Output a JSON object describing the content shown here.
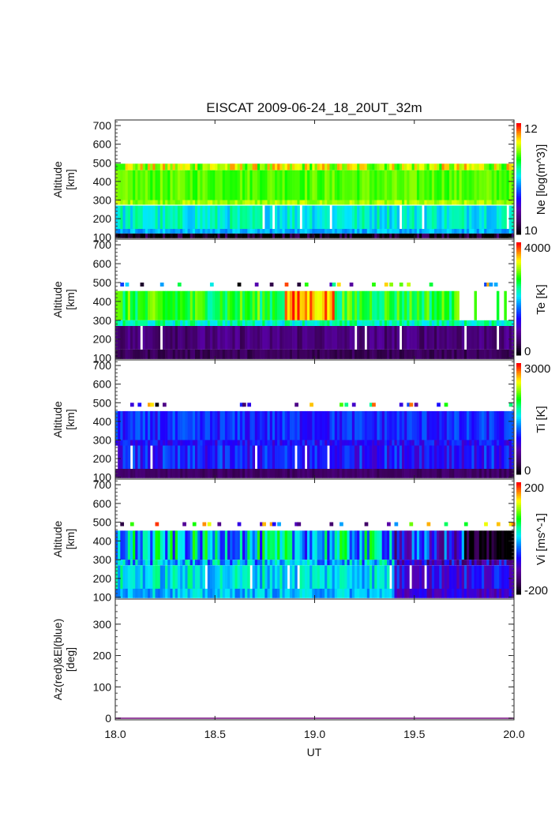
{
  "chart_data": {
    "type": "heatmap",
    "title": "EISCAT 2009-06-24_18_20UT_32m",
    "xlabel": "UT",
    "xlim": [
      18.0,
      20.0
    ],
    "xticks": [
      "18.0",
      "18.5",
      "19.0",
      "19.5",
      "20.0"
    ],
    "xtick_values": [
      18.0,
      18.5,
      19.0,
      19.5,
      20.0
    ],
    "panels": [
      {
        "id": "ne",
        "ylabel": [
          "Altitude",
          "[km]"
        ],
        "ylim": [
          90,
          730
        ],
        "yticks": [
          100,
          200,
          300,
          400,
          500,
          600,
          700
        ],
        "colorbar": {
          "label": "Ne [log(m^3)]",
          "min": 10,
          "max": 12,
          "min_label": "10",
          "max_label": "12"
        },
        "description": "Electron density; dominant values ~11.3-11.6 (green/yellow-green) between 280-490 km, ~11.0 (cyan) 140-270 km, low values below 130 km; gaps shown white",
        "layers": [
          {
            "alt": [
              460,
              495
            ],
            "typical": 11.6,
            "spread": 0.25
          },
          {
            "alt": [
              300,
              460
            ],
            "typical": 11.45,
            "spread": 0.08
          },
          {
            "alt": [
              275,
              300
            ],
            "typical": 11.55,
            "spread": 0.1
          },
          {
            "alt": [
              145,
              270
            ],
            "typical": 11.1,
            "spread": 0.15
          },
          {
            "alt": [
              120,
              145
            ],
            "typical": 10.95,
            "spread": 0.1
          },
          {
            "alt": [
              95,
              120
            ],
            "typical": 10.0,
            "spread": 0.3
          }
        ]
      },
      {
        "id": "te",
        "ylabel": [
          "Altitude",
          "[km]"
        ],
        "ylim": [
          90,
          730
        ],
        "yticks": [
          100,
          200,
          300,
          400,
          500,
          600,
          700
        ],
        "colorbar": {
          "label": "Te [K]",
          "min": 0,
          "max": 4000,
          "min_label": "0",
          "max_label": "4000"
        },
        "description": "Electron temperature; ~2500-3000 K (green/yellow) 300-460 km, up to ~3800 K (orange/red) near 18.9-19.1 UT; ~500-800 K (purple) below 270 km",
        "layers": [
          {
            "alt": [
              300,
              455
            ],
            "typical": 2700,
            "spread": 400
          },
          {
            "alt": [
              270,
              300
            ],
            "typical": 2300,
            "spread": 300
          },
          {
            "alt": [
              145,
              270
            ],
            "typical": 600,
            "spread": 250
          },
          {
            "alt": [
              95,
              145
            ],
            "typical": 400,
            "spread": 150
          }
        ]
      },
      {
        "id": "ti",
        "ylabel": [
          "Altitude",
          "[km]"
        ],
        "ylim": [
          90,
          730
        ],
        "yticks": [
          100,
          200,
          300,
          400,
          500,
          600,
          700
        ],
        "colorbar": {
          "label": "Ti [K]",
          "min": 0,
          "max": 3000,
          "min_label": "0",
          "max_label": "3000"
        },
        "description": "Ion temperature; ~900-1300 K (blue/cyan) 140-460 km; ~300 K (purple) below 140 km; sporadic points near 490 km",
        "layers": [
          {
            "alt": [
              300,
              455
            ],
            "typical": 1050,
            "spread": 200
          },
          {
            "alt": [
              270,
              300
            ],
            "typical": 950,
            "spread": 200
          },
          {
            "alt": [
              145,
              270
            ],
            "typical": 1000,
            "spread": 250
          },
          {
            "alt": [
              95,
              145
            ],
            "typical": 350,
            "spread": 100
          }
        ]
      },
      {
        "id": "vi",
        "ylabel": [
          "Altitude",
          "[km]"
        ],
        "ylim": [
          90,
          730
        ],
        "yticks": [
          100,
          200,
          300,
          400,
          500,
          600,
          700
        ],
        "colorbar": {
          "label": "Vi [ms^-1]",
          "min": -200,
          "max": 200,
          "min_label": "-200",
          "max_label": "200"
        },
        "description": "Ion line-of-sight velocity; mostly near 0 (green/cyan), negative (blue/black) after ~19.4 UT, especially above 300 km after 19.8 UT",
        "layers": [
          {
            "alt": [
              300,
              455
            ],
            "typical": 0,
            "spread": 80
          },
          {
            "alt": [
              270,
              300
            ],
            "typical": -10,
            "spread": 60
          },
          {
            "alt": [
              145,
              270
            ],
            "typical": 10,
            "spread": 40
          },
          {
            "alt": [
              95,
              145
            ],
            "typical": -5,
            "spread": 30
          }
        ]
      },
      {
        "id": "azel",
        "ylabel": [
          "Az(red)&El(blue)",
          "[deg]"
        ],
        "ylim": [
          -5,
          380
        ],
        "yticks": [
          0,
          100,
          200,
          300
        ],
        "series": [
          {
            "name": "Az",
            "color": "#ff0000",
            "x": [
              18.0,
              20.0
            ],
            "y": [
              0,
              0
            ]
          },
          {
            "name": "El",
            "color": "#0000ff",
            "x": [
              18.0,
              20.0
            ],
            "y": [
              0,
              0
            ]
          }
        ],
        "line_color": "#9a4aa0"
      }
    ]
  }
}
